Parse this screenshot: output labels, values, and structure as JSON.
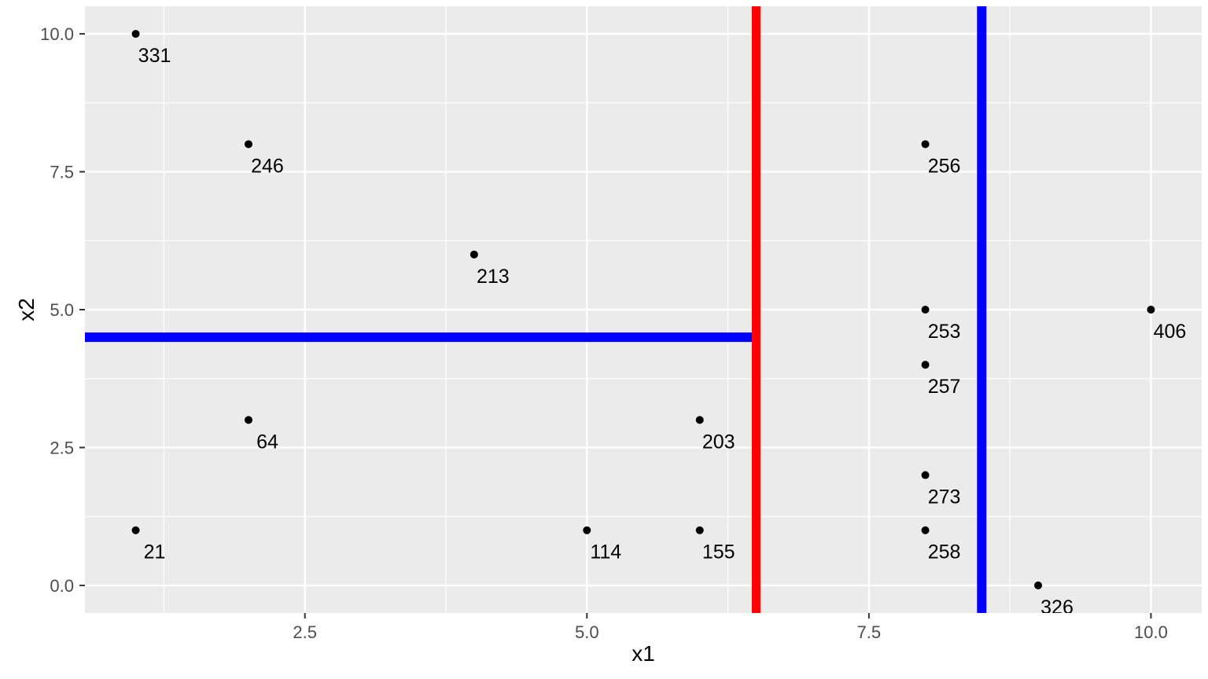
{
  "chart_data": {
    "type": "scatter",
    "title": "",
    "xlabel": "x1",
    "ylabel": "x2",
    "xlim": [
      0.55,
      10.45
    ],
    "ylim": [
      -0.5,
      10.5
    ],
    "x_ticks": [
      2.5,
      5.0,
      7.5,
      10.0
    ],
    "x_tick_labels": [
      "2.5",
      "5.0",
      "7.5",
      "10.0"
    ],
    "y_ticks": [
      0.0,
      2.5,
      5.0,
      7.5,
      10.0
    ],
    "y_tick_labels": [
      "0.0",
      "2.5",
      "5.0",
      "7.5",
      "10.0"
    ],
    "x_minor_ticks": [
      1.25,
      3.75,
      6.25,
      8.75
    ],
    "y_minor_ticks": [
      1.25,
      3.75,
      6.25,
      8.75
    ],
    "grid": true,
    "legend": "none",
    "panel_background": "#EBEBEB",
    "grid_color": "#FFFFFF",
    "point_color": "#000000",
    "tick_label_color": "#4D4D4D",
    "tick_mark_color": "#333333",
    "points": [
      {
        "x": 1,
        "y": 10,
        "label": "331"
      },
      {
        "x": 2,
        "y": 8,
        "label": "246"
      },
      {
        "x": 4,
        "y": 6,
        "label": "213"
      },
      {
        "x": 2,
        "y": 3,
        "label": "64"
      },
      {
        "x": 1,
        "y": 1,
        "label": "21"
      },
      {
        "x": 5,
        "y": 1,
        "label": "114"
      },
      {
        "x": 6,
        "y": 1,
        "label": "155"
      },
      {
        "x": 6,
        "y": 3,
        "label": "203"
      },
      {
        "x": 8,
        "y": 8,
        "label": "256"
      },
      {
        "x": 8,
        "y": 5,
        "label": "253"
      },
      {
        "x": 8,
        "y": 4,
        "label": "257"
      },
      {
        "x": 8,
        "y": 2,
        "label": "273"
      },
      {
        "x": 8,
        "y": 1,
        "label": "258"
      },
      {
        "x": 9,
        "y": 0,
        "label": "326"
      },
      {
        "x": 10,
        "y": 5,
        "label": "406"
      }
    ],
    "partition_lines": [
      {
        "orientation": "horizontal",
        "y": 4.5,
        "x_from": 0.55,
        "x_to": 6.5,
        "color": "#0000FF",
        "width": 12
      },
      {
        "orientation": "vertical",
        "x": 8.5,
        "y_from": -0.5,
        "y_to": 10.5,
        "color": "#0000FF",
        "width": 12
      },
      {
        "orientation": "vertical",
        "x": 6.5,
        "y_from": -0.5,
        "y_to": 10.5,
        "color": "#FF0000",
        "width": 11
      }
    ]
  }
}
